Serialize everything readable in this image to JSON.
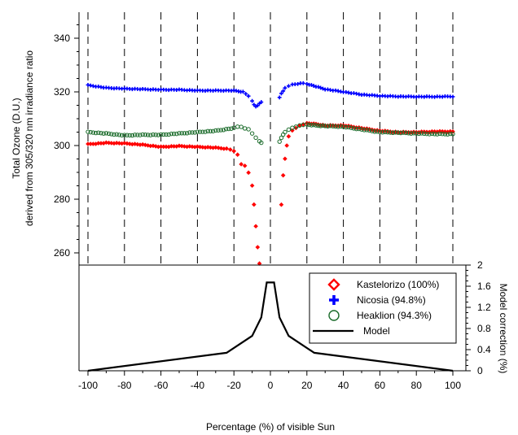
{
  "chart_data": {
    "type": "scatter",
    "xlabel": "Percentage (%) of visible Sun",
    "xlim": [
      -100,
      100
    ],
    "xticks": [
      "-100",
      "-80",
      "-60",
      "-40",
      "-20",
      "0",
      "20",
      "40",
      "60",
      "80",
      "100"
    ],
    "top_panel": {
      "ylabel_line1": "Total Ozone (D.U.)",
      "ylabel_line2": "derived from 305/320 nm irradiance ratio",
      "ylim": [
        255,
        348
      ],
      "yticks": [
        "260",
        "280",
        "300",
        "320",
        "340"
      ],
      "series": [
        {
          "name": "Kastelorizo (100%)",
          "marker": "diamond",
          "color": "#ff0000",
          "x": [
            -100,
            -90,
            -80,
            -70,
            -60,
            -50,
            -40,
            -30,
            -24,
            -22,
            -20,
            -18,
            -16,
            -14,
            -12,
            -10,
            -9,
            -8,
            -7,
            -6,
            6,
            7,
            8,
            9,
            10,
            12,
            14,
            16,
            18,
            20,
            25,
            30,
            40,
            50,
            60,
            70,
            80,
            90,
            100
          ],
          "y": [
            300.5,
            301,
            300.8,
            300.3,
            299.5,
            299.8,
            299.5,
            299.2,
            298.8,
            298.5,
            298,
            296.5,
            293,
            292.5,
            290,
            285,
            278,
            270,
            262,
            256,
            278,
            289,
            295,
            300,
            303.5,
            305.5,
            306.5,
            307.5,
            308,
            308.3,
            308,
            307.5,
            307.5,
            306.5,
            305.5,
            305,
            305,
            305.2,
            305.2
          ]
        },
        {
          "name": "Nicosia (94.8%)",
          "marker": "cross",
          "color": "#0000ff",
          "x": [
            -100,
            -90,
            -80,
            -70,
            -60,
            -50,
            -40,
            -30,
            -20,
            -15,
            -12,
            -10,
            -9,
            -8,
            -7,
            -6,
            -5,
            5,
            6,
            7,
            8,
            10,
            12,
            15,
            18,
            20,
            25,
            30,
            40,
            50,
            60,
            70,
            80,
            90,
            100
          ],
          "y": [
            322.5,
            321.5,
            321.2,
            321,
            320.8,
            320.8,
            320.5,
            320.5,
            320.5,
            320,
            318.5,
            316.5,
            315.2,
            314.6,
            315,
            315.6,
            316.2,
            318,
            319.3,
            320.3,
            321.5,
            322.3,
            322.7,
            323,
            323.2,
            323,
            322,
            321,
            320,
            319,
            318.5,
            318.3,
            318.2,
            318.2,
            318.3
          ]
        },
        {
          "name": "Heaklion (94.3%)",
          "marker": "circle",
          "color": "#1a6b2a",
          "x": [
            -100,
            -90,
            -80,
            -70,
            -60,
            -50,
            -40,
            -30,
            -20,
            -18,
            -16,
            -14,
            -12,
            -10,
            -8,
            -6,
            -5,
            5,
            6,
            7,
            8,
            10,
            12,
            14,
            16,
            18,
            20,
            25,
            30,
            40,
            50,
            60,
            70,
            80,
            90,
            100
          ],
          "y": [
            305,
            304.5,
            303.8,
            304,
            304,
            304.5,
            305,
            305.5,
            306.5,
            307,
            307,
            306.5,
            306,
            304.5,
            303,
            301.5,
            301,
            301.5,
            303,
            304,
            305,
            306,
            306.5,
            307,
            307.5,
            307.8,
            307.8,
            307.5,
            307.3,
            307,
            306,
            305,
            304.8,
            304.5,
            304.3,
            304.3
          ]
        }
      ],
      "gridlines_x": [
        -100,
        -80,
        -60,
        -40,
        -20,
        0,
        20,
        40,
        60,
        80,
        100
      ],
      "gridline_style": "dashed"
    },
    "bottom_panel": {
      "ylabel": "Model correction (%)",
      "ylim": [
        0,
        2
      ],
      "yticks": [
        "0",
        "0.4",
        "0.8",
        "1.2",
        "1.6",
        "2"
      ],
      "series": [
        {
          "name": "Model",
          "color": "#000000",
          "x": [
            -100,
            -24,
            -10,
            -5,
            -2,
            2,
            5,
            10,
            24,
            100
          ],
          "y": [
            0,
            0.34,
            0.66,
            1.01,
            1.67,
            1.67,
            1.01,
            0.66,
            0.34,
            0
          ]
        }
      ]
    },
    "legend": {
      "placement": "top-right of lower panel",
      "entries": [
        {
          "label": "Kastelorizo (100%)",
          "marker": "diamond",
          "color": "#ff0000"
        },
        {
          "label": "Nicosia (94.8%)",
          "marker": "cross",
          "color": "#0000ff"
        },
        {
          "label": "Heaklion (94.3%)",
          "marker": "circle",
          "color": "#1a6b2a"
        },
        {
          "label": "Model",
          "marker": "line",
          "color": "#000000"
        }
      ]
    }
  }
}
